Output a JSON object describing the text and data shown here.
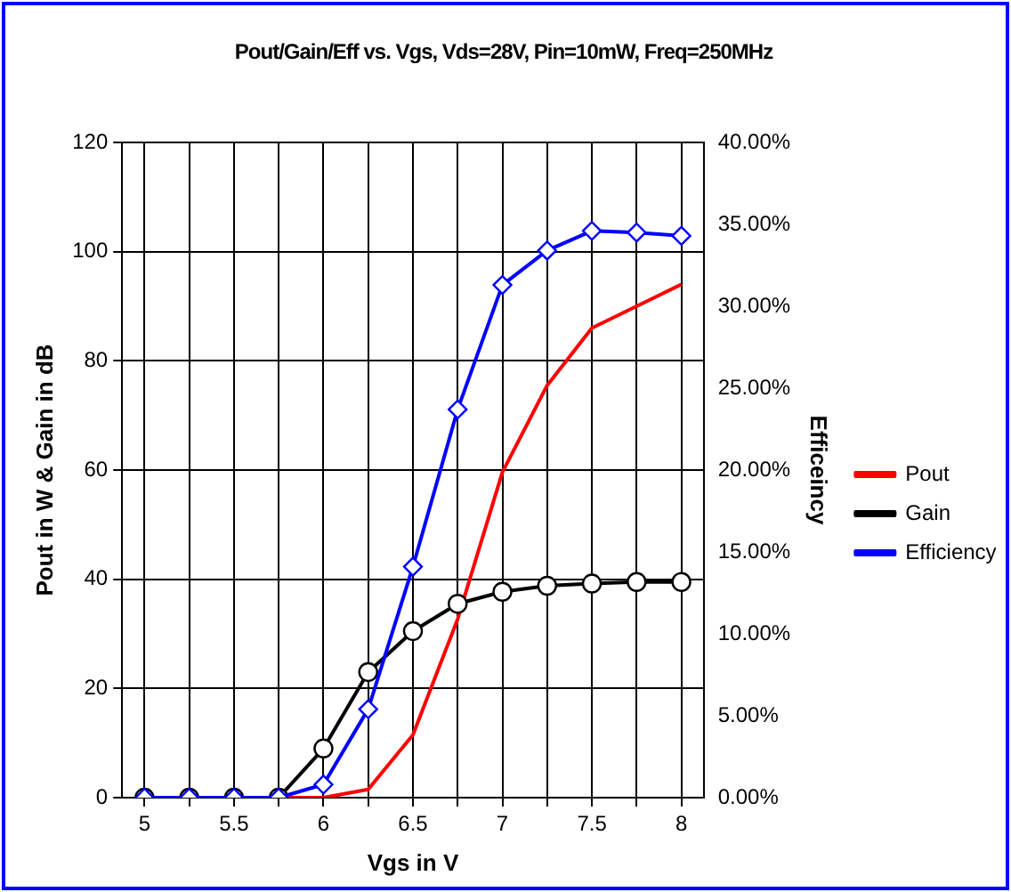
{
  "chart_data": {
    "type": "line",
    "title": "Pout/Gain/Eff vs. Vgs, Vds=28V, Pin=10mW, Freq=250MHz",
    "xlabel": "Vgs in V",
    "ylabel": "Pout in W & Gain in dB",
    "y2label": "Efficeincy",
    "x": [
      5,
      5.25,
      5.5,
      5.75,
      6,
      6.25,
      6.5,
      6.75,
      7,
      7.25,
      7.5,
      7.75,
      8
    ],
    "series": [
      {
        "name": "Pout",
        "color": "#ff0000",
        "marker": "none",
        "values": [
          null,
          null,
          null,
          0,
          0,
          1.5,
          11.5,
          32.7,
          59.6,
          75.5,
          86,
          90,
          94
        ]
      },
      {
        "name": "Gain",
        "color": "#000000",
        "marker": "circle",
        "values": [
          0,
          0,
          0,
          0,
          9,
          23,
          30.5,
          35.5,
          37.7,
          38.8,
          39.2,
          39.5,
          39.5
        ]
      },
      {
        "name": "Efficiency",
        "color": "#0000ff",
        "marker": "diamond",
        "axis": "y2",
        "values": [
          0,
          0,
          0,
          0,
          0.8,
          5.4,
          14.1,
          23.7,
          31.3,
          33.4,
          34.6,
          34.5,
          34.3
        ]
      }
    ],
    "xlim": [
      4.875,
      8.125
    ],
    "xticks": [
      5,
      {
        "value": 5.25,
        "label": null
      },
      5.5,
      {
        "value": 5.75,
        "label": null
      },
      6,
      {
        "value": 6.25,
        "label": null
      },
      6.5,
      {
        "value": 6.75,
        "label": null
      },
      7,
      {
        "value": 7.25,
        "label": null
      },
      7.5,
      {
        "value": 7.75,
        "label": null
      },
      8
    ],
    "ylim": [
      0,
      120
    ],
    "yticks": [
      0,
      20,
      40,
      60,
      80,
      100,
      120
    ],
    "y2lim": [
      0,
      40
    ],
    "y2ticks": [
      {
        "value": 0,
        "label": "0.00%"
      },
      {
        "value": 5,
        "label": "5.00%"
      },
      {
        "value": 10,
        "label": "10.00%"
      },
      {
        "value": 15,
        "label": "15.00%"
      },
      {
        "value": 20,
        "label": "20.00%"
      },
      {
        "value": 25,
        "label": "25.00%"
      },
      {
        "value": 30,
        "label": "30.00%"
      },
      {
        "value": 35,
        "label": "35.00%"
      },
      {
        "value": 40,
        "label": "40.00%"
      }
    ],
    "grid": true,
    "legend": "right",
    "line_style": "solid"
  }
}
